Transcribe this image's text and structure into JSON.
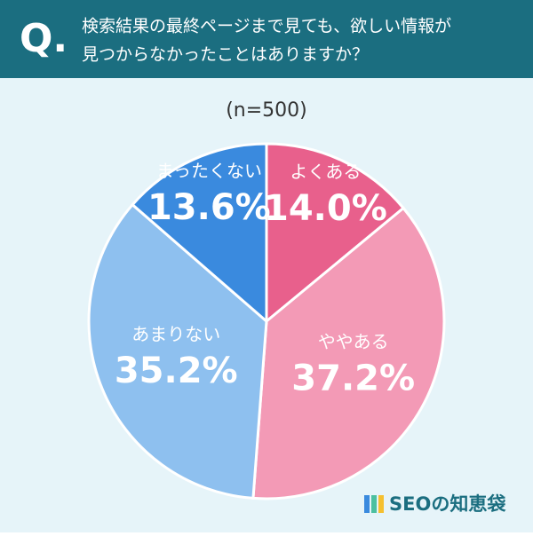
{
  "chart_data": {
    "type": "pie",
    "question_label": "Q.",
    "title": [
      "検索結果の最終ページまで見ても、欲しい情報が",
      "見つからなかったことはありますか？"
    ],
    "subtitle": "(n=500)",
    "categories": [
      "よくある",
      "ややある",
      "あまりない",
      "まったくない"
    ],
    "values": [
      14.0,
      37.2,
      35.2,
      13.6
    ],
    "value_labels": [
      "14.0%",
      "37.2%",
      "35.2%",
      "13.6%"
    ],
    "colors": [
      "#e8608c",
      "#f39ab6",
      "#8ec0ef",
      "#3a8ade"
    ],
    "brand": "SEOの知恵袋"
  }
}
